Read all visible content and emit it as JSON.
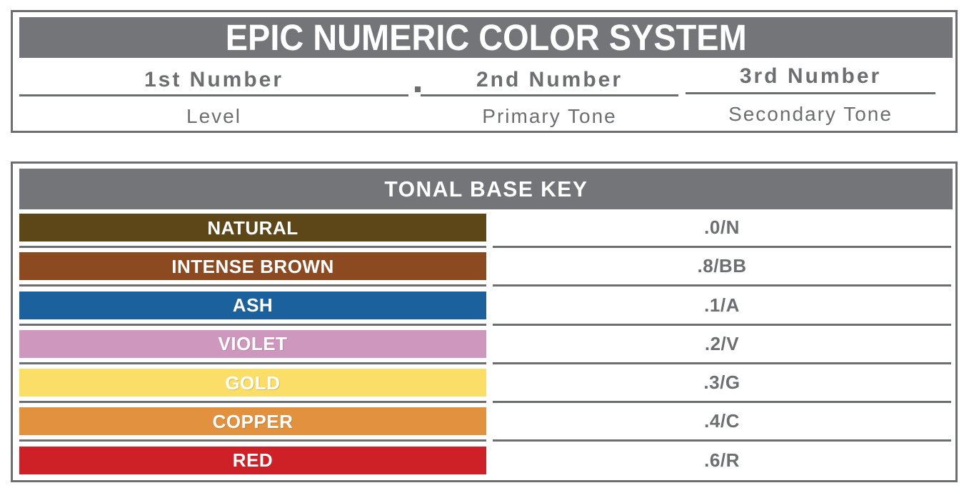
{
  "colors": {
    "gray": "#6d6e71",
    "gray_fill": "#747579",
    "white": "#ffffff"
  },
  "numeric_system": {
    "title": "EPIC NUMERIC COLOR SYSTEM",
    "separator_dot": ".",
    "columns": [
      {
        "number_label": "1st Number",
        "meaning": "Level"
      },
      {
        "number_label": "2nd Number",
        "meaning": "Primary Tone"
      },
      {
        "number_label": "3rd Number",
        "meaning": "Secondary Tone"
      }
    ]
  },
  "tonal_key": {
    "title": "TONAL BASE KEY",
    "rows": [
      {
        "name": "NATURAL",
        "code": ".0/N",
        "color": "#5d4718"
      },
      {
        "name": "INTENSE BROWN",
        "code": ".8/BB",
        "color": "#8c4a21"
      },
      {
        "name": "ASH",
        "code": ".1/A",
        "color": "#1a619d"
      },
      {
        "name": "VIOLET",
        "code": ".2/V",
        "color": "#ce97bd"
      },
      {
        "name": "GOLD",
        "code": ".3/G",
        "color": "#fbde67"
      },
      {
        "name": "COPPER",
        "code": ".4/C",
        "color": "#e2913e"
      },
      {
        "name": "RED",
        "code": ".6/R",
        "color": "#ce2127"
      }
    ]
  }
}
